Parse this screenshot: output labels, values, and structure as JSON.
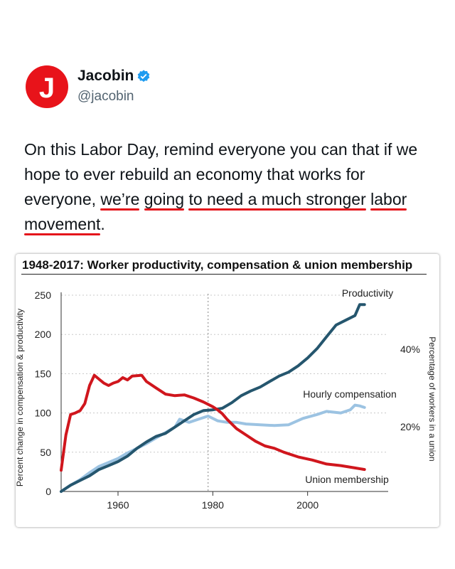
{
  "tweet": {
    "author_name": "Jacobin",
    "handle": "@jacobin",
    "avatar_letter": "J",
    "brand_color": "#e8131a",
    "verified_color": "#1d9bf0",
    "text_segments": [
      {
        "text": "On this Labor Day, remind everyone you can that if we hope to ever rebuild an economy that works for everyone, ",
        "hl": false
      },
      {
        "text": "we’re",
        "hl": true
      },
      {
        "text": " ",
        "hl": false
      },
      {
        "text": "going",
        "hl": true
      },
      {
        "text": " ",
        "hl": false
      },
      {
        "text": "to need a much stronger",
        "hl": true
      },
      {
        "text": " ",
        "hl": false
      },
      {
        "text": "labor",
        "hl": true
      },
      {
        "text": " ",
        "hl": false
      },
      {
        "text": "movement",
        "hl": true
      },
      {
        "text": ".",
        "hl": false
      }
    ],
    "underline_color": "#e4141b"
  },
  "chart_data": {
    "type": "line",
    "title": "1948-2017: Worker productivity, compensation & union membership",
    "ylabel_left": "Percent change in compensation & productivity",
    "ylabel_right": "Percentage of workers in a union",
    "xlim": [
      1948,
      2017
    ],
    "ylim": [
      0,
      250
    ],
    "x_ticks": [
      "1960",
      "1980",
      "2000"
    ],
    "y_ticks": [
      "0",
      "50",
      "100",
      "150",
      "200",
      "250"
    ],
    "right_ticks": [
      "20%",
      "40%"
    ],
    "grid": true,
    "series": [
      {
        "name": "Productivity",
        "color": "#25566e",
        "points": [
          [
            1948,
            0
          ],
          [
            1950,
            8
          ],
          [
            1952,
            14
          ],
          [
            1954,
            20
          ],
          [
            1956,
            28
          ],
          [
            1958,
            33
          ],
          [
            1960,
            38
          ],
          [
            1962,
            45
          ],
          [
            1964,
            55
          ],
          [
            1966,
            63
          ],
          [
            1968,
            70
          ],
          [
            1970,
            74
          ],
          [
            1972,
            82
          ],
          [
            1974,
            90
          ],
          [
            1976,
            98
          ],
          [
            1978,
            103
          ],
          [
            1980,
            104
          ],
          [
            1982,
            106
          ],
          [
            1984,
            113
          ],
          [
            1986,
            122
          ],
          [
            1988,
            128
          ],
          [
            1990,
            133
          ],
          [
            1992,
            140
          ],
          [
            1994,
            147
          ],
          [
            1996,
            152
          ],
          [
            1998,
            160
          ],
          [
            2000,
            170
          ],
          [
            2002,
            182
          ],
          [
            2004,
            197
          ],
          [
            2006,
            212
          ],
          [
            2008,
            218
          ],
          [
            2010,
            224
          ],
          [
            2011,
            238
          ],
          [
            2012,
            238
          ]
        ]
      },
      {
        "name": "Hourly compensation",
        "color": "#9cc3e2",
        "points": [
          [
            1948,
            0
          ],
          [
            1950,
            8
          ],
          [
            1952,
            15
          ],
          [
            1954,
            24
          ],
          [
            1956,
            32
          ],
          [
            1958,
            37
          ],
          [
            1960,
            42
          ],
          [
            1962,
            49
          ],
          [
            1964,
            55
          ],
          [
            1966,
            61
          ],
          [
            1968,
            68
          ],
          [
            1970,
            75
          ],
          [
            1972,
            82
          ],
          [
            1973,
            92
          ],
          [
            1975,
            88
          ],
          [
            1977,
            92
          ],
          [
            1979,
            96
          ],
          [
            1981,
            90
          ],
          [
            1983,
            88
          ],
          [
            1985,
            88
          ],
          [
            1987,
            86
          ],
          [
            1990,
            85
          ],
          [
            1993,
            84
          ],
          [
            1996,
            85
          ],
          [
            1999,
            93
          ],
          [
            2002,
            98
          ],
          [
            2004,
            102
          ],
          [
            2007,
            100
          ],
          [
            2009,
            104
          ],
          [
            2010,
            110
          ],
          [
            2011,
            109
          ],
          [
            2012,
            107
          ]
        ]
      },
      {
        "name": "Union membership",
        "color": "#d0161d",
        "points": [
          [
            1948,
            27
          ],
          [
            1949,
            72
          ],
          [
            1950,
            98
          ],
          [
            1951,
            100
          ],
          [
            1952,
            103
          ],
          [
            1953,
            112
          ],
          [
            1954,
            135
          ],
          [
            1955,
            148
          ],
          [
            1956,
            143
          ],
          [
            1957,
            138
          ],
          [
            1958,
            135
          ],
          [
            1959,
            138
          ],
          [
            1960,
            140
          ],
          [
            1961,
            145
          ],
          [
            1962,
            142
          ],
          [
            1963,
            147
          ],
          [
            1965,
            148
          ],
          [
            1966,
            140
          ],
          [
            1968,
            132
          ],
          [
            1970,
            124
          ],
          [
            1972,
            122
          ],
          [
            1974,
            123
          ],
          [
            1976,
            119
          ],
          [
            1978,
            114
          ],
          [
            1980,
            108
          ],
          [
            1981,
            104
          ],
          [
            1982,
            99
          ],
          [
            1983,
            92
          ],
          [
            1985,
            80
          ],
          [
            1987,
            72
          ],
          [
            1989,
            64
          ],
          [
            1991,
            58
          ],
          [
            1993,
            55
          ],
          [
            1995,
            50
          ],
          [
            1998,
            44
          ],
          [
            2001,
            40
          ],
          [
            2004,
            35
          ],
          [
            2007,
            33
          ],
          [
            2010,
            30
          ],
          [
            2012,
            28
          ]
        ]
      }
    ],
    "series_label_text": [
      "Productivity",
      "Hourly compensation",
      "Union membership"
    ]
  }
}
